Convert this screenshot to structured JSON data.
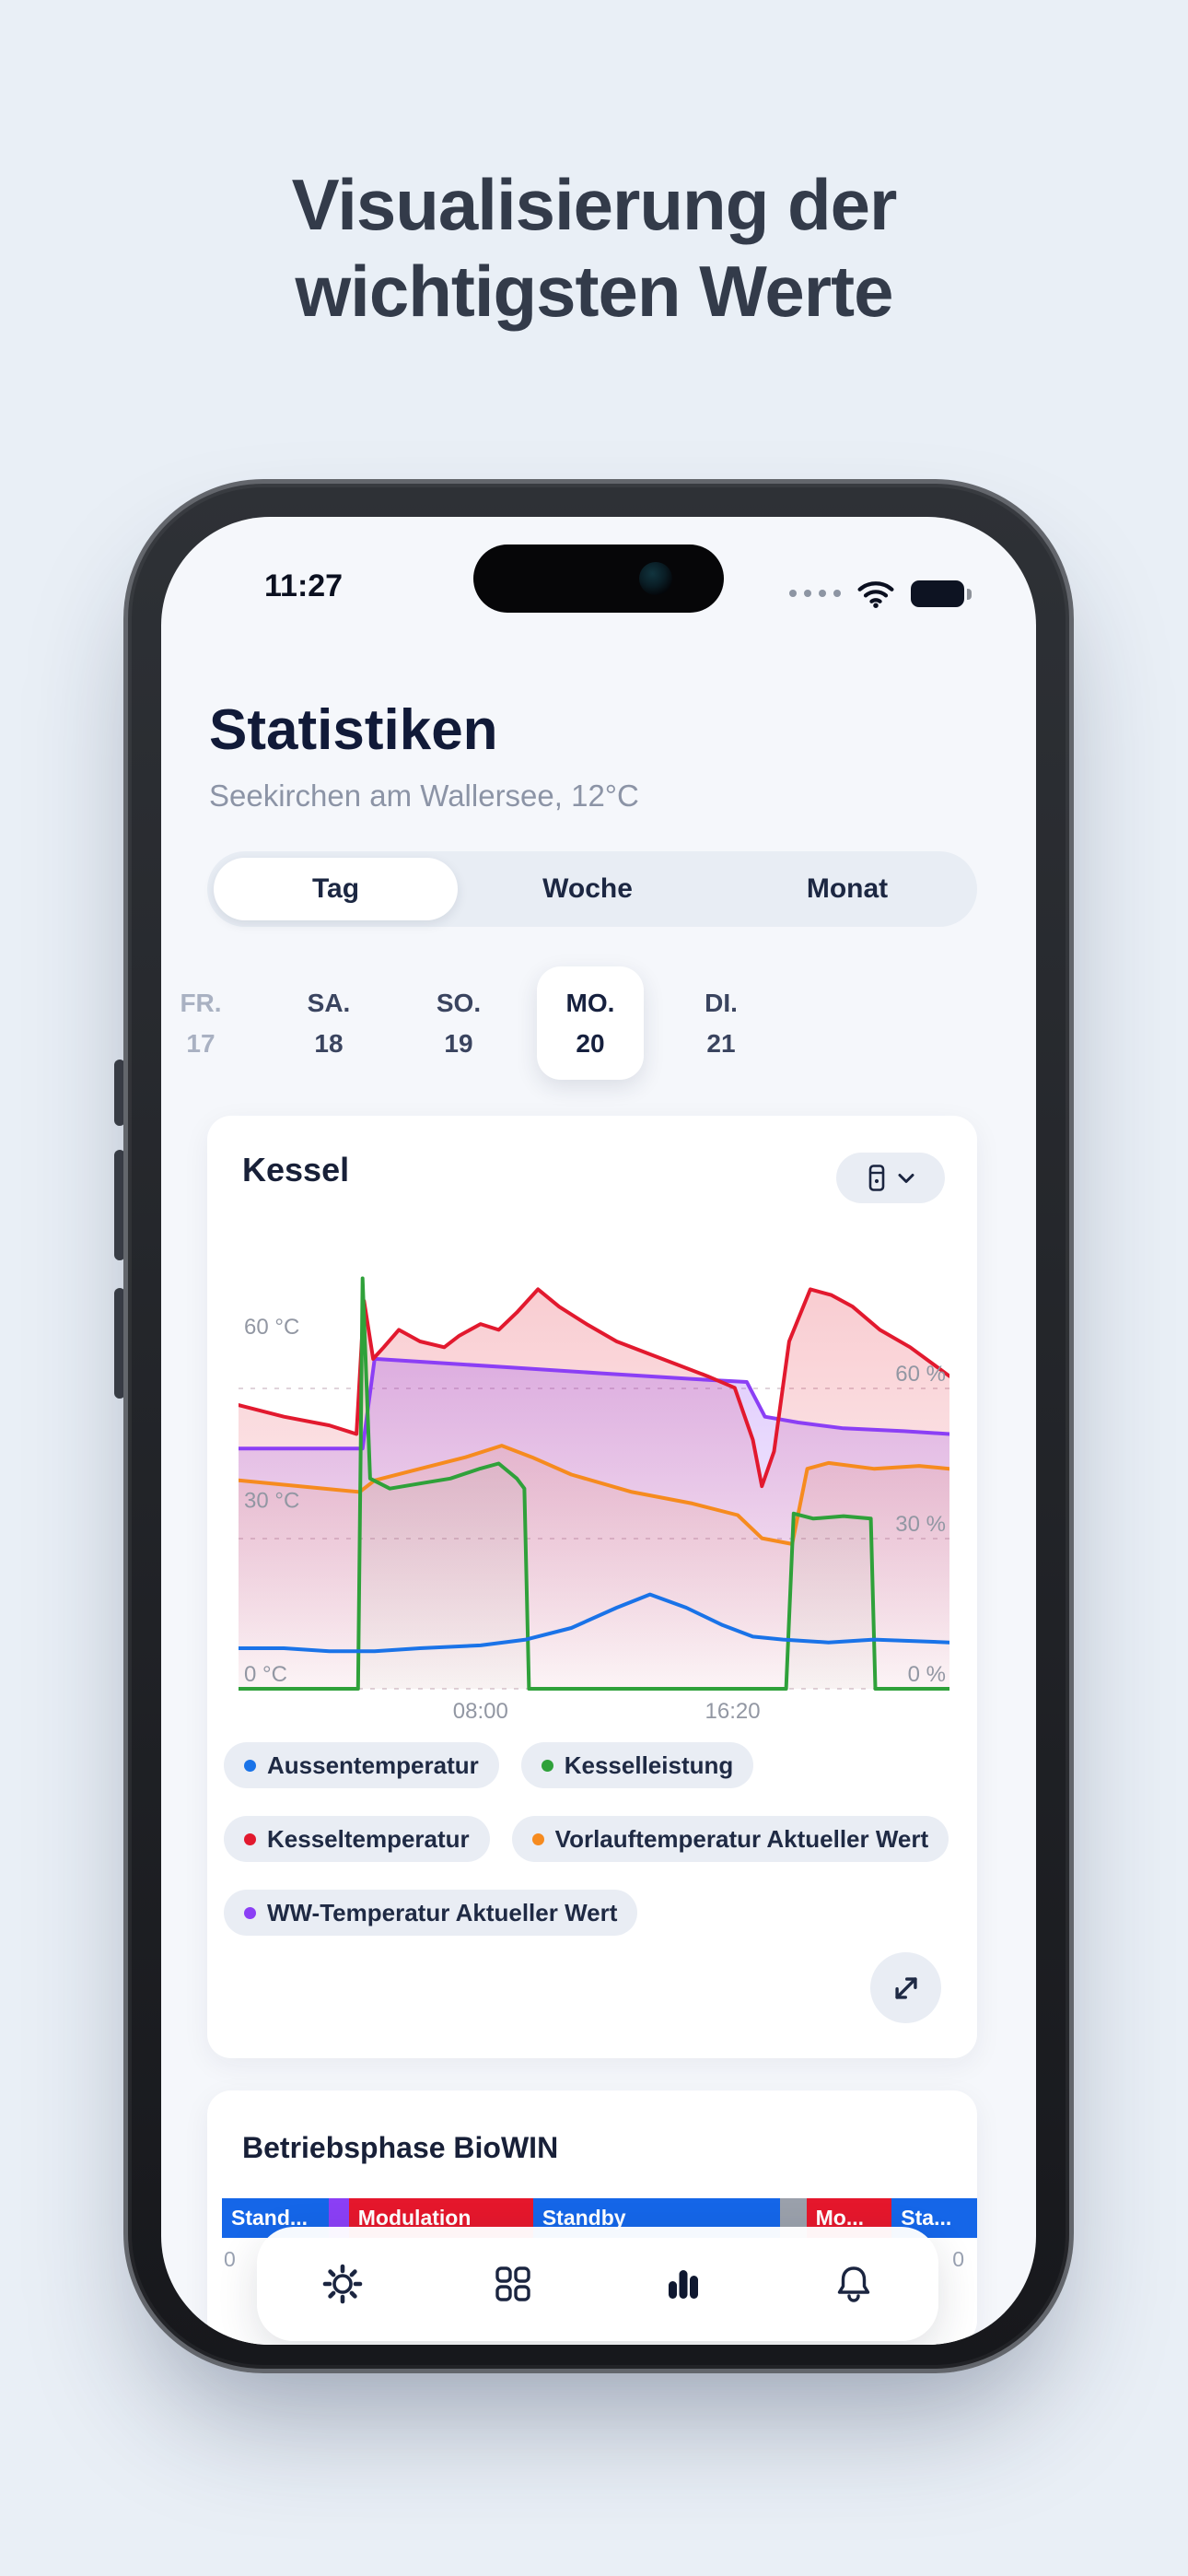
{
  "page": {
    "heading_line1": "Visualisierung der",
    "heading_line2": "wichtigsten Werte"
  },
  "status_bar": {
    "time": "11:27",
    "icons": [
      "signal-dots-icon",
      "wifi-icon",
      "battery-icon"
    ]
  },
  "header": {
    "title": "Statistiken",
    "subtitle": "Seekirchen am Wallersee, 12°C"
  },
  "period_tabs": {
    "tag": "Tag",
    "woche": "Woche",
    "monat": "Monat",
    "selected": "Tag"
  },
  "dates": [
    {
      "day": "FR.",
      "num": "17",
      "state": "muted"
    },
    {
      "day": "SA.",
      "num": "18",
      "state": "normal"
    },
    {
      "day": "SO.",
      "num": "19",
      "state": "normal"
    },
    {
      "day": "MO.",
      "num": "20",
      "state": "selected"
    },
    {
      "day": "DI.",
      "num": "21",
      "state": "normal"
    }
  ],
  "kessel_card": {
    "title": "Kessel",
    "filter_icon": "boiler-icon",
    "expand_icon": "expand-icon"
  },
  "chart_data": {
    "type": "line",
    "title": "Kessel",
    "x_unit": "hours",
    "x_range": [
      0,
      23.5
    ],
    "x_ticks": [
      {
        "pos": 8.0,
        "label": "08:00"
      },
      {
        "pos": 16.333,
        "label": "16:20"
      }
    ],
    "left_axis": {
      "unit": "°C",
      "range": [
        0,
        73
      ],
      "ticks": [
        {
          "v": 60,
          "label": "60 °C"
        },
        {
          "v": 30,
          "label": "30 °C"
        },
        {
          "v": 0,
          "label": "0 °C"
        }
      ]
    },
    "right_axis": {
      "unit": "%",
      "range": [
        0,
        85
      ],
      "ticks": [
        {
          "v": 60,
          "label": "60 %"
        },
        {
          "v": 30,
          "label": "30 %"
        },
        {
          "v": 0,
          "label": "0 %"
        }
      ]
    },
    "grid": "dashed-horizontal",
    "legend_position": "bottom",
    "series": [
      {
        "name": "Aussentemperatur",
        "color": "#1a73e8",
        "axis": "temp",
        "fill": 0,
        "points": [
          [
            0,
            7
          ],
          [
            1.5,
            7
          ],
          [
            3,
            6.5
          ],
          [
            4.5,
            6.5
          ],
          [
            6,
            7
          ],
          [
            8,
            7.5
          ],
          [
            9.5,
            8.5
          ],
          [
            11,
            10.5
          ],
          [
            12.5,
            14
          ],
          [
            13.6,
            16.3
          ],
          [
            14.8,
            14
          ],
          [
            16,
            11
          ],
          [
            17,
            9
          ],
          [
            18,
            8.5
          ],
          [
            19.5,
            8
          ],
          [
            21,
            8.5
          ],
          [
            23.5,
            8
          ]
        ]
      },
      {
        "name": "Kesselleistung",
        "color": "#2fa13a",
        "axis": "pct",
        "fill": 0.1,
        "points": [
          [
            0,
            0
          ],
          [
            3.95,
            0
          ],
          [
            4.1,
            82
          ],
          [
            4.35,
            42
          ],
          [
            5,
            40
          ],
          [
            6,
            41
          ],
          [
            7,
            42
          ],
          [
            8,
            44
          ],
          [
            8.6,
            45
          ],
          [
            9.2,
            42
          ],
          [
            9.45,
            40
          ],
          [
            9.6,
            0
          ],
          [
            18.1,
            0
          ],
          [
            18.35,
            35
          ],
          [
            19,
            34
          ],
          [
            20,
            34.5
          ],
          [
            20.9,
            34
          ],
          [
            21.05,
            0
          ],
          [
            23.5,
            0
          ]
        ]
      },
      {
        "name": "Kesseltemperatur",
        "color": "#e2192e",
        "axis": "temp",
        "fill": 0.22,
        "points": [
          [
            0,
            49
          ],
          [
            1.5,
            47
          ],
          [
            3,
            45.5
          ],
          [
            3.9,
            44
          ],
          [
            4.15,
            67
          ],
          [
            4.45,
            57
          ],
          [
            4.8,
            59
          ],
          [
            5.3,
            62
          ],
          [
            6,
            60
          ],
          [
            6.8,
            59
          ],
          [
            7.3,
            61
          ],
          [
            8,
            63
          ],
          [
            8.6,
            62
          ],
          [
            9.2,
            65
          ],
          [
            9.9,
            69
          ],
          [
            10.6,
            66
          ],
          [
            11.5,
            63
          ],
          [
            12.5,
            60
          ],
          [
            13.5,
            58
          ],
          [
            14.5,
            56
          ],
          [
            15.5,
            54
          ],
          [
            16.4,
            52
          ],
          [
            17,
            43
          ],
          [
            17.3,
            35
          ],
          [
            17.7,
            41
          ],
          [
            18.2,
            60
          ],
          [
            18.9,
            69
          ],
          [
            19.6,
            68
          ],
          [
            20.3,
            66
          ],
          [
            21.2,
            62
          ],
          [
            22.2,
            59
          ],
          [
            23.5,
            54
          ]
        ]
      },
      {
        "name": "Vorlauftemperatur Aktueller Wert",
        "color": "#f68b1f",
        "axis": "temp",
        "fill": 0.15,
        "points": [
          [
            0,
            36
          ],
          [
            2,
            35
          ],
          [
            4,
            34
          ],
          [
            4.5,
            36
          ],
          [
            6,
            38
          ],
          [
            7.5,
            40
          ],
          [
            8.7,
            42
          ],
          [
            9.7,
            40
          ],
          [
            11,
            37
          ],
          [
            13,
            34
          ],
          [
            15,
            32
          ],
          [
            16.5,
            30
          ],
          [
            17.3,
            26
          ],
          [
            18.3,
            25
          ],
          [
            18.8,
            38
          ],
          [
            19.5,
            39
          ],
          [
            21,
            38
          ],
          [
            22.5,
            38.5
          ],
          [
            23.5,
            38
          ]
        ]
      },
      {
        "name": "WW-Temperatur Aktueller Wert",
        "color": "#8b3ff5",
        "axis": "temp",
        "fill": 0.26,
        "points": [
          [
            0,
            41.5
          ],
          [
            4.1,
            41.5
          ],
          [
            4.5,
            57
          ],
          [
            6,
            56.5
          ],
          [
            9,
            55.5
          ],
          [
            12,
            54.5
          ],
          [
            15,
            53.5
          ],
          [
            16.8,
            53
          ],
          [
            17.4,
            47
          ],
          [
            18.5,
            46
          ],
          [
            20,
            45
          ],
          [
            22,
            44.5
          ],
          [
            23.5,
            44
          ]
        ]
      }
    ]
  },
  "phase_card": {
    "title": "Betriebsphase BioWIN",
    "segments": [
      {
        "label": "Stand...",
        "color": "#1566e8",
        "frac": 0.142
      },
      {
        "label": "",
        "color": "#8b3ff5",
        "frac": 0.026
      },
      {
        "label": "Modulation",
        "color": "#e5172c",
        "frac": 0.244
      },
      {
        "label": "Standby",
        "color": "#1566e8",
        "frac": 0.327
      },
      {
        "label": "",
        "color": "#9aa0ab",
        "frac": 0.035
      },
      {
        "label": "Mo...",
        "color": "#e5172c",
        "frac": 0.113
      },
      {
        "label": "Sta...",
        "color": "#1566e8",
        "frac": 0.113
      }
    ],
    "axis_left": "0",
    "axis_right": "0"
  },
  "tabbar": {
    "items": [
      "settings",
      "dashboard",
      "statistics",
      "notifications"
    ],
    "active": "statistics"
  },
  "colors": {
    "page_bg": "#e9eff6",
    "navy_text": "#16203e",
    "muted_text": "#8c94a6",
    "chip_bg": "#e9edf4",
    "accent_blue": "#1a73e8",
    "accent_green": "#2fa13a",
    "accent_red": "#e2192e",
    "accent_orange": "#f68b1f",
    "accent_purple": "#8b3ff5"
  }
}
